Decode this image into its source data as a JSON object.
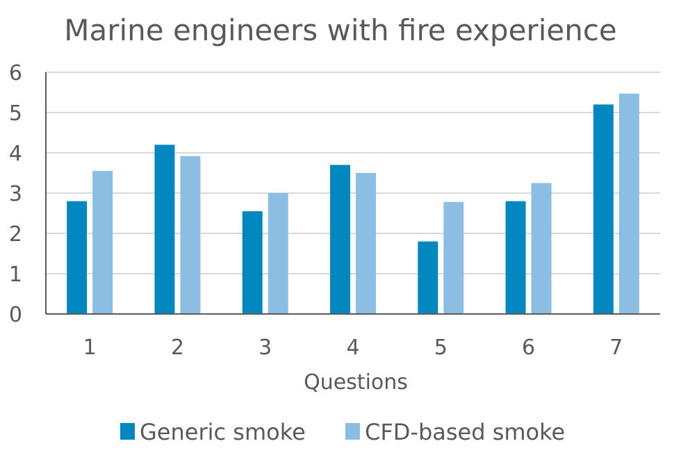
{
  "chart_data": {
    "type": "bar",
    "title": "Marine engineers with fire experience",
    "xlabel": "Questions",
    "ylabel": "",
    "categories": [
      "1",
      "2",
      "3",
      "4",
      "5",
      "6",
      "7"
    ],
    "series": [
      {
        "name": "Generic smoke",
        "values": [
          2.8,
          4.2,
          2.55,
          3.7,
          1.8,
          2.8,
          5.2
        ],
        "color": "#0288BE"
      },
      {
        "name": "CFD-based smoke",
        "values": [
          3.55,
          3.92,
          3.0,
          3.5,
          2.78,
          3.25,
          5.47
        ],
        "color": "#8CBDE3"
      }
    ],
    "yticks": [
      "0",
      "1",
      "2",
      "3",
      "4",
      "5",
      "6"
    ],
    "ylim": [
      0,
      6
    ],
    "grid": true,
    "legend_position": "bottom"
  }
}
